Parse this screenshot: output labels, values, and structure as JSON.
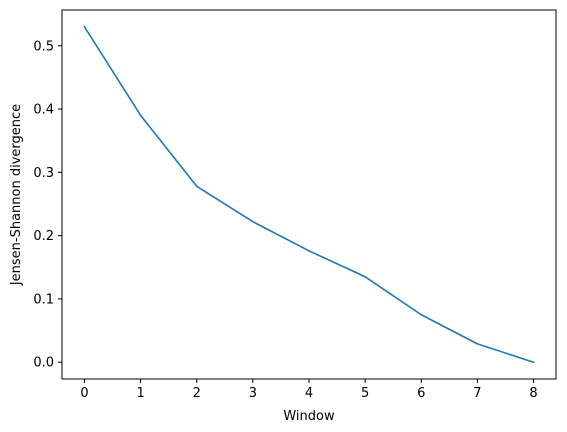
{
  "chart_data": {
    "type": "line",
    "title": "",
    "xlabel": "Window",
    "ylabel": "Jensen-Shannon divergence",
    "xlim": [
      -0.4,
      8.4
    ],
    "ylim": [
      -0.0265,
      0.5565
    ],
    "xticks": [
      0,
      1,
      2,
      3,
      4,
      5,
      6,
      7,
      8
    ],
    "xtick_labels": [
      "0",
      "1",
      "2",
      "3",
      "4",
      "5",
      "6",
      "7",
      "8"
    ],
    "yticks": [
      0.0,
      0.1,
      0.2,
      0.3,
      0.4,
      0.5
    ],
    "ytick_labels": [
      "0.0",
      "0.1",
      "0.2",
      "0.3",
      "0.4",
      "0.5"
    ],
    "grid": false,
    "series": [
      {
        "color": "#1f77b4",
        "x": [
          0,
          1,
          2,
          3,
          4,
          5,
          6,
          7,
          8
        ],
        "y": [
          0.53,
          0.39,
          0.278,
          0.222,
          0.176,
          0.135,
          0.075,
          0.029,
          0.0
        ]
      }
    ]
  }
}
